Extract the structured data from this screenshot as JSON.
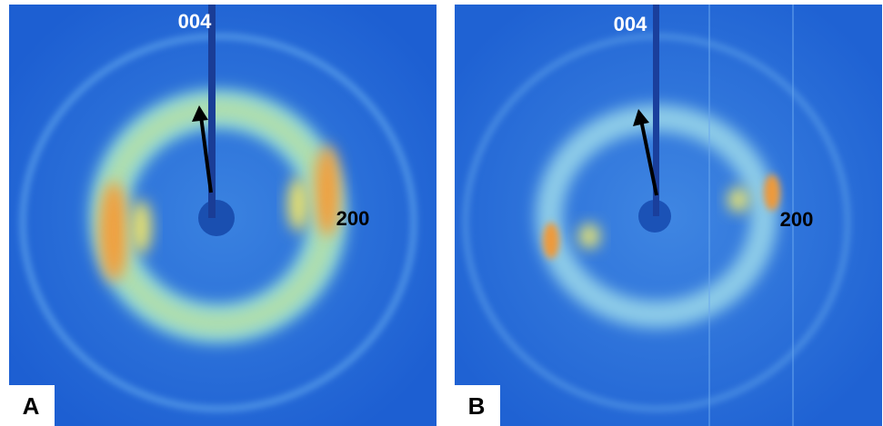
{
  "panels": [
    {
      "label": "A",
      "annotations": [
        "004",
        "200"
      ]
    },
    {
      "label": "B",
      "annotations": [
        "004",
        "200"
      ]
    }
  ]
}
